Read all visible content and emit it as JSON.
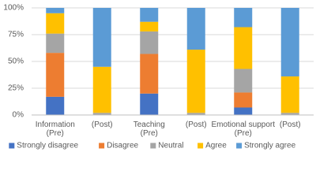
{
  "chart_data": {
    "type": "stacked_bar",
    "categories": [
      "Information (Pre)",
      "(Post)",
      "Teaching (Pre)",
      "(Post)",
      "Emotional support (Pre)",
      "(Post)"
    ],
    "series": [
      {
        "name": "Strongly disagree",
        "color": "#4472c4",
        "values": [
          17,
          0,
          20,
          0,
          7,
          0
        ]
      },
      {
        "name": "Disagree",
        "color": "#ed7d31",
        "values": [
          41,
          0,
          37,
          0,
          14,
          0
        ]
      },
      {
        "name": "Neutral",
        "color": "#a5a5a5",
        "values": [
          18,
          2,
          21,
          2,
          22,
          2
        ]
      },
      {
        "name": "Agree",
        "color": "#ffc000",
        "values": [
          19,
          43,
          9,
          59,
          39,
          34
        ]
      },
      {
        "name": "Strongly agree",
        "color": "#5b9bd5",
        "values": [
          5,
          55,
          13,
          39,
          18,
          64
        ]
      }
    ],
    "ylim": [
      0,
      100
    ],
    "yticks": [
      {
        "value": 0,
        "label": "0%"
      },
      {
        "value": 25,
        "label": "25%"
      },
      {
        "value": 50,
        "label": "50%"
      },
      {
        "value": 75,
        "label": "75%"
      },
      {
        "value": 100,
        "label": "100%"
      }
    ],
    "grid": true,
    "legend": "bottom"
  }
}
